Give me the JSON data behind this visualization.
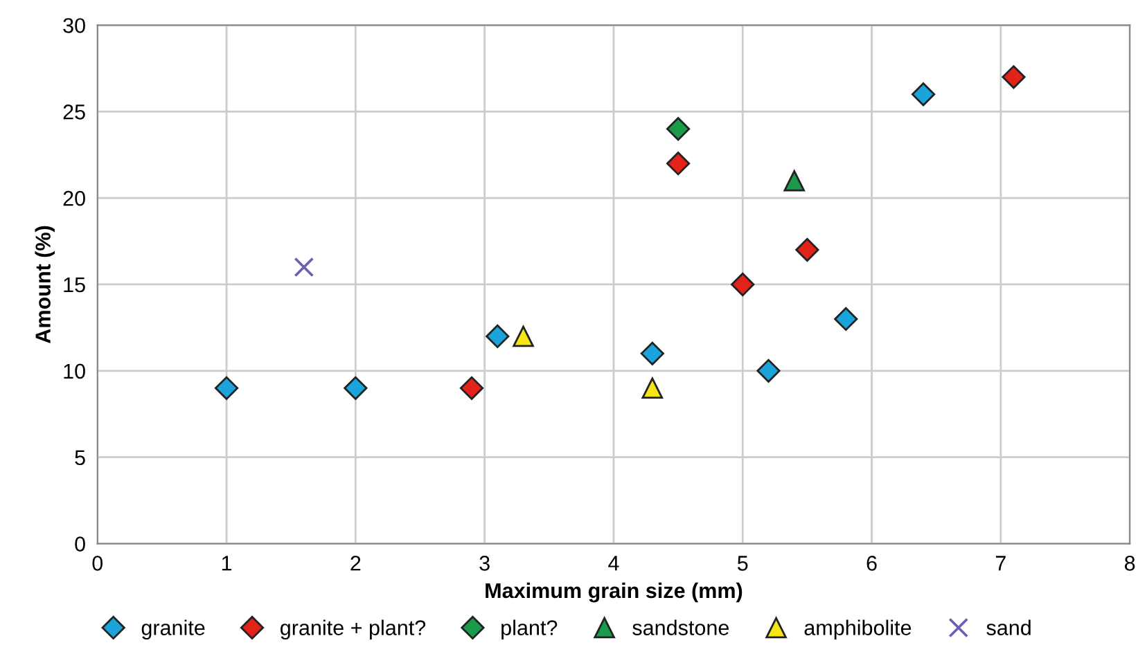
{
  "chart_data": {
    "type": "scatter",
    "xlabel": "Maximum grain size (mm)",
    "ylabel": "Amount (%)",
    "xlim": [
      0,
      8
    ],
    "ylim": [
      0,
      30
    ],
    "xticks": [
      0,
      1,
      2,
      3,
      4,
      5,
      6,
      7,
      8
    ],
    "yticks": [
      0,
      5,
      10,
      15,
      20,
      25,
      30
    ],
    "grid": true,
    "legend": "bottom",
    "series": [
      {
        "name": "granite",
        "color": "#1ba3dc",
        "marker": "diamond",
        "x": [
          1,
          2,
          3.1,
          4.3,
          5.2,
          5.8,
          6.4
        ],
        "values": [
          9,
          9,
          12,
          11,
          10,
          13,
          26
        ]
      },
      {
        "name": "granite + plant?",
        "color": "#e2231a",
        "marker": "diamond",
        "x": [
          2.9,
          4.5,
          5,
          5.5,
          7.1
        ],
        "values": [
          9,
          22,
          15,
          17,
          27
        ]
      },
      {
        "name": "plant?",
        "color": "#1a9a4a",
        "marker": "diamond",
        "x": [
          4.5
        ],
        "values": [
          24
        ]
      },
      {
        "name": "sandstone",
        "color": "#1a9a4a",
        "marker": "triangle",
        "x": [
          5.4
        ],
        "values": [
          21
        ]
      },
      {
        "name": "amphibolite",
        "color": "#f5e614",
        "marker": "triangle",
        "x": [
          3.3,
          4.3
        ],
        "values": [
          12,
          9
        ]
      },
      {
        "name": "sand",
        "color": "#6a5fb0",
        "marker": "cross",
        "x": [
          1.6
        ],
        "values": [
          16
        ]
      }
    ]
  }
}
